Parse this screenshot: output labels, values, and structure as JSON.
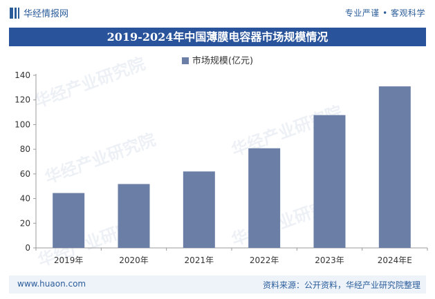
{
  "header": {
    "logo_text": "华经情报网",
    "tagline": "专业严谨 • 客观科学"
  },
  "footer": {
    "website": "www.huaon.com",
    "source": "资料来源：公开资料，华经产业研究院整理"
  },
  "watermark": "华经产业研究院",
  "colors": {
    "bar": "#6b7fa6",
    "title_bg": "#29539a",
    "brand": "#2a5c9a"
  },
  "chart_data": {
    "type": "bar",
    "title": "2019-2024年中国薄膜电容器市场规模情况",
    "categories": [
      "2019年",
      "2020年",
      "2021年",
      "2022年",
      "2023年",
      "2024年E"
    ],
    "series": [
      {
        "name": "市场规模(亿元)",
        "values": [
          44.5,
          51.8,
          62,
          80.8,
          107.7,
          131
        ]
      }
    ],
    "yticks": [
      0,
      20,
      40,
      60,
      80,
      100,
      120,
      140
    ],
    "ylim": [
      0,
      140
    ],
    "xlabel": "",
    "ylabel": "",
    "legend_position": "top-center",
    "grid": false
  }
}
